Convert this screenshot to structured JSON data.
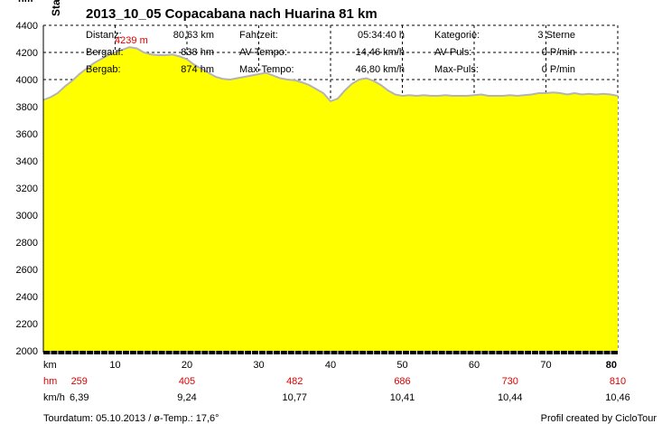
{
  "chart_data": {
    "type": "area",
    "title": "2013_10_05 Copacabana nach Huarina 81 km",
    "ylabel_top": "hm",
    "ylabel_rotated": "Sta",
    "xlim": [
      0,
      80
    ],
    "ylim": [
      2000,
      4400
    ],
    "y_ticks": [
      2000,
      2200,
      2400,
      2600,
      2800,
      3000,
      3200,
      3400,
      3600,
      3800,
      4000,
      4200,
      4400
    ],
    "x_ticks": [
      10,
      20,
      30,
      40,
      50,
      60,
      70,
      80
    ],
    "x_unit": "km",
    "grid": true,
    "colors": {
      "fill": "#ffff00",
      "line": "#b4b4b4",
      "grid": "#000000",
      "red": "#dd0000"
    },
    "profile": {
      "x": [
        0,
        1,
        2,
        3,
        4,
        5,
        6,
        7,
        8,
        9,
        10,
        11,
        12,
        13,
        14,
        15,
        16,
        17,
        18,
        19,
        20,
        21,
        22,
        23,
        24,
        25,
        26,
        27,
        28,
        29,
        30,
        31,
        32,
        33,
        34,
        35,
        36,
        37,
        38,
        39,
        40,
        41,
        42,
        43,
        44,
        45,
        46,
        47,
        48,
        49,
        50,
        51,
        52,
        53,
        54,
        55,
        56,
        57,
        58,
        59,
        60,
        61,
        62,
        63,
        64,
        65,
        66,
        67,
        68,
        69,
        70,
        71,
        72,
        73,
        74,
        75,
        76,
        77,
        78,
        79,
        80
      ],
      "y": [
        3850,
        3870,
        3900,
        3950,
        3990,
        4040,
        4080,
        4120,
        4150,
        4180,
        4200,
        4220,
        4239,
        4230,
        4200,
        4185,
        4180,
        4180,
        4185,
        4170,
        4150,
        4110,
        4080,
        4050,
        4020,
        4005,
        4000,
        4010,
        4020,
        4030,
        4040,
        4050,
        4030,
        4010,
        4000,
        3995,
        3980,
        3960,
        3930,
        3900,
        3840,
        3860,
        3920,
        3970,
        4000,
        4010,
        3990,
        3960,
        3920,
        3890,
        3880,
        3885,
        3880,
        3885,
        3880,
        3880,
        3885,
        3880,
        3880,
        3880,
        3885,
        3890,
        3880,
        3880,
        3880,
        3885,
        3880,
        3885,
        3890,
        3900,
        3900,
        3905,
        3900,
        3890,
        3900,
        3890,
        3895,
        3890,
        3895,
        3890,
        3880
      ]
    },
    "peak": {
      "label": "4239 m",
      "x": 12,
      "y": 4239
    },
    "stats": [
      [
        "Distanz:",
        "80,63 km",
        "Fahrzeit:",
        "05:34:40 h",
        "Kategorie:",
        "3 Sterne"
      ],
      [
        "Bergauf:",
        "838 hm",
        "AV-Tempo:",
        "14,46 km/h",
        "AV-Puls:",
        "0 P/min"
      ],
      [
        "Bergab:",
        "874 hm",
        "Max-Tempo:",
        "46,80 km/h",
        "Max-Puls:",
        "0 P/min"
      ]
    ],
    "bottom_rows": {
      "labels": {
        "km": "km",
        "hm": "hm",
        "kmh": "km/h"
      },
      "hm_positions": [
        5,
        20,
        35,
        50,
        65,
        80
      ],
      "hm": [
        "259",
        "405",
        "482",
        "686",
        "730",
        "810"
      ],
      "kmh": [
        "6,39",
        "9,24",
        "10,77",
        "10,41",
        "10,44",
        "10,46"
      ]
    }
  },
  "footer": {
    "left": "Tourdatum: 05.10.2013 / ø-Temp.: 17,6°",
    "right": "Profil created by CicloTour"
  }
}
